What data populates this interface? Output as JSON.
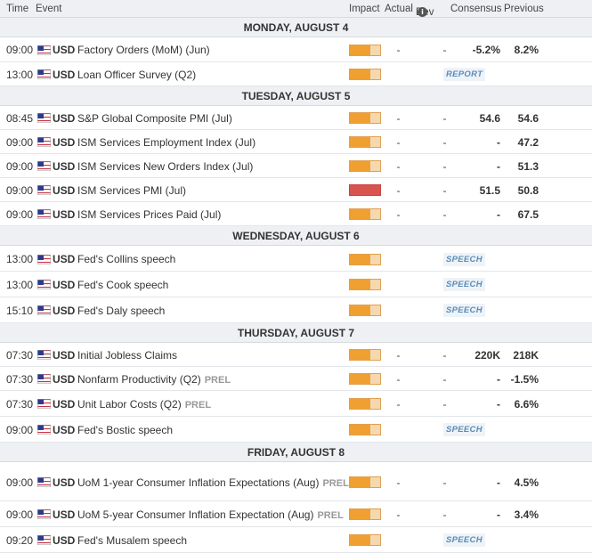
{
  "header": {
    "time": "Time",
    "event": "Event",
    "impact": "Impact",
    "actual": "Actual",
    "dev": "Dev",
    "info_icon": "info-icon",
    "consensus": "Consensus",
    "previous": "Previous"
  },
  "colors": {
    "medium_impact": "#f0a030",
    "high_impact": "#d9534f",
    "report_tag": "#5b8cb8"
  },
  "days": [
    {
      "label": "MONDAY, AUGUST 4",
      "events": [
        {
          "time": "09:00",
          "currency": "USD",
          "title": "Factory Orders (MoM) (Jun)",
          "prel": "",
          "impact": "medium",
          "actual": "-",
          "dev": "-",
          "consensus": "-5.2%",
          "previous": "8.2%",
          "tag": ""
        },
        {
          "time": "13:00",
          "currency": "USD",
          "title": "Loan Officer Survey (Q2)",
          "prel": "",
          "impact": "medium",
          "actual": "",
          "dev": "",
          "consensus": "",
          "previous": "",
          "tag": "REPORT"
        }
      ]
    },
    {
      "label": "TUESDAY, AUGUST 5",
      "events": [
        {
          "time": "08:45",
          "currency": "USD",
          "title": "S&P Global Composite PMI (Jul)",
          "prel": "",
          "impact": "medium",
          "actual": "-",
          "dev": "-",
          "consensus": "54.6",
          "previous": "54.6",
          "tag": ""
        },
        {
          "time": "09:00",
          "currency": "USD",
          "title": "ISM Services Employment Index (Jul)",
          "prel": "",
          "impact": "medium",
          "actual": "-",
          "dev": "-",
          "consensus": "-",
          "previous": "47.2",
          "tag": ""
        },
        {
          "time": "09:00",
          "currency": "USD",
          "title": "ISM Services New Orders Index (Jul)",
          "prel": "",
          "impact": "medium",
          "actual": "-",
          "dev": "-",
          "consensus": "-",
          "previous": "51.3",
          "tag": ""
        },
        {
          "time": "09:00",
          "currency": "USD",
          "title": "ISM Services PMI (Jul)",
          "prel": "",
          "impact": "high",
          "actual": "-",
          "dev": "-",
          "consensus": "51.5",
          "previous": "50.8",
          "tag": ""
        },
        {
          "time": "09:00",
          "currency": "USD",
          "title": "ISM Services Prices Paid (Jul)",
          "prel": "",
          "impact": "medium",
          "actual": "-",
          "dev": "-",
          "consensus": "-",
          "previous": "67.5",
          "tag": ""
        }
      ]
    },
    {
      "label": "WEDNESDAY, AUGUST 6",
      "events": [
        {
          "time": "13:00",
          "currency": "USD",
          "title": "Fed's Collins speech",
          "prel": "",
          "impact": "medium",
          "actual": "",
          "dev": "",
          "consensus": "",
          "previous": "",
          "tag": "SPEECH"
        },
        {
          "time": "13:00",
          "currency": "USD",
          "title": "Fed's Cook speech",
          "prel": "",
          "impact": "medium",
          "actual": "",
          "dev": "",
          "consensus": "",
          "previous": "",
          "tag": "SPEECH"
        },
        {
          "time": "15:10",
          "currency": "USD",
          "title": "Fed's Daly speech",
          "prel": "",
          "impact": "medium",
          "actual": "",
          "dev": "",
          "consensus": "",
          "previous": "",
          "tag": "SPEECH"
        }
      ]
    },
    {
      "label": "THURSDAY, AUGUST 7",
      "events": [
        {
          "time": "07:30",
          "currency": "USD",
          "title": "Initial Jobless Claims",
          "prel": "",
          "impact": "medium",
          "actual": "-",
          "dev": "-",
          "consensus": "220K",
          "previous": "218K",
          "tag": ""
        },
        {
          "time": "07:30",
          "currency": "USD",
          "title": "Nonfarm Productivity (Q2)",
          "prel": "PREL",
          "impact": "medium",
          "actual": "-",
          "dev": "-",
          "consensus": "-",
          "previous": "-1.5%",
          "tag": ""
        },
        {
          "time": "07:30",
          "currency": "USD",
          "title": "Unit Labor Costs (Q2)",
          "prel": "PREL",
          "impact": "medium",
          "actual": "-",
          "dev": "-",
          "consensus": "-",
          "previous": "6.6%",
          "tag": ""
        },
        {
          "time": "09:00",
          "currency": "USD",
          "title": "Fed's Bostic speech",
          "prel": "",
          "impact": "medium",
          "actual": "",
          "dev": "",
          "consensus": "",
          "previous": "",
          "tag": "SPEECH"
        }
      ]
    },
    {
      "label": "FRIDAY, AUGUST 8",
      "events": [
        {
          "time": "09:00",
          "currency": "USD",
          "title": "UoM 1-year Consumer Inflation Expectations (Aug)",
          "prel": "PREL",
          "impact": "medium",
          "actual": "-",
          "dev": "-",
          "consensus": "-",
          "previous": "4.5%",
          "tag": ""
        },
        {
          "time": "09:00",
          "currency": "USD",
          "title": "UoM 5-year Consumer Inflation Expectation (Aug)",
          "prel": "PREL",
          "impact": "medium",
          "actual": "-",
          "dev": "-",
          "consensus": "-",
          "previous": "3.4%",
          "tag": ""
        },
        {
          "time": "09:20",
          "currency": "USD",
          "title": "Fed's Musalem speech",
          "prel": "",
          "impact": "medium",
          "actual": "",
          "dev": "",
          "consensus": "",
          "previous": "",
          "tag": "SPEECH"
        }
      ]
    }
  ]
}
